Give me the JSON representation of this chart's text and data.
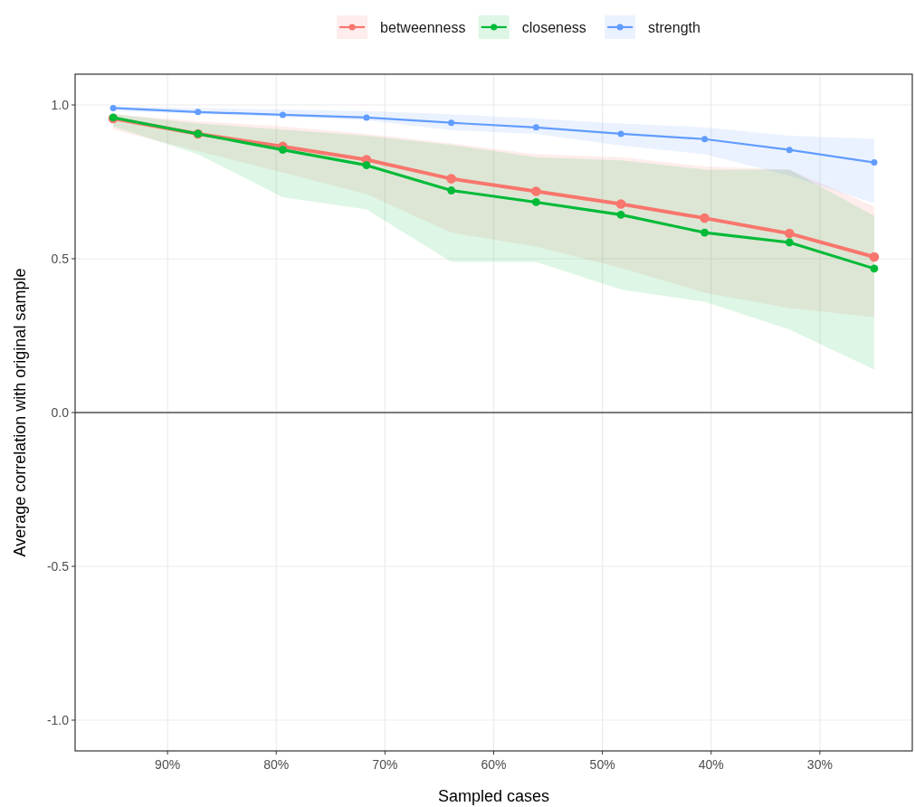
{
  "chart_data": {
    "type": "line",
    "xlabel": "Sampled cases",
    "ylabel": "Average correlation with original sample",
    "x": [
      95,
      87.2,
      79.4,
      71.7,
      63.9,
      56.1,
      48.3,
      40.6,
      32.8,
      25
    ],
    "xlim": [
      98.5,
      21.5
    ],
    "xticks": [
      {
        "value": 90,
        "label": "90%"
      },
      {
        "value": 80,
        "label": "80%"
      },
      {
        "value": 70,
        "label": "70%"
      },
      {
        "value": 60,
        "label": "60%"
      },
      {
        "value": 50,
        "label": "50%"
      },
      {
        "value": 40,
        "label": "40%"
      },
      {
        "value": 30,
        "label": "30%"
      }
    ],
    "ylim": [
      -1.1,
      1.1
    ],
    "yticks": [
      {
        "value": -1,
        "label": "-1.0"
      },
      {
        "value": -0.5,
        "label": "-0.5"
      },
      {
        "value": 0,
        "label": "0.0"
      },
      {
        "value": 0.5,
        "label": "0.5"
      },
      {
        "value": 1,
        "label": "1.0"
      }
    ],
    "grid": true,
    "legend": "top",
    "marker": "circle",
    "line_style": "solid",
    "ref_lines": [
      {
        "axis": "y",
        "value": 0,
        "color": "#000000"
      }
    ],
    "series": [
      {
        "name": "betweenness",
        "color": "#f8766d",
        "values": [
          0.956,
          0.906,
          0.865,
          0.822,
          0.76,
          0.719,
          0.678,
          0.632,
          0.582,
          0.506
        ],
        "lower": [
          0.92,
          0.85,
          0.78,
          0.71,
          0.585,
          0.54,
          0.47,
          0.39,
          0.34,
          0.31
        ],
        "upper": [
          0.97,
          0.947,
          0.93,
          0.906,
          0.875,
          0.84,
          0.83,
          0.8,
          0.79,
          0.67
        ]
      },
      {
        "name": "closeness",
        "color": "#00ba38",
        "values": [
          0.959,
          0.906,
          0.854,
          0.804,
          0.722,
          0.684,
          0.643,
          0.585,
          0.553,
          0.468
        ],
        "lower": [
          0.93,
          0.84,
          0.7,
          0.66,
          0.49,
          0.49,
          0.4,
          0.36,
          0.27,
          0.14
        ],
        "upper": [
          0.97,
          0.94,
          0.92,
          0.9,
          0.87,
          0.83,
          0.82,
          0.79,
          0.79,
          0.64
        ]
      },
      {
        "name": "strength",
        "color": "#619cff",
        "values": [
          0.99,
          0.977,
          0.968,
          0.959,
          0.942,
          0.927,
          0.906,
          0.889,
          0.854,
          0.813
        ],
        "lower": [
          0.98,
          0.971,
          0.962,
          0.95,
          0.918,
          0.906,
          0.868,
          0.84,
          0.77,
          0.68
        ],
        "upper": [
          0.995,
          0.99,
          0.985,
          0.98,
          0.97,
          0.956,
          0.94,
          0.927,
          0.9,
          0.89
        ]
      }
    ]
  }
}
